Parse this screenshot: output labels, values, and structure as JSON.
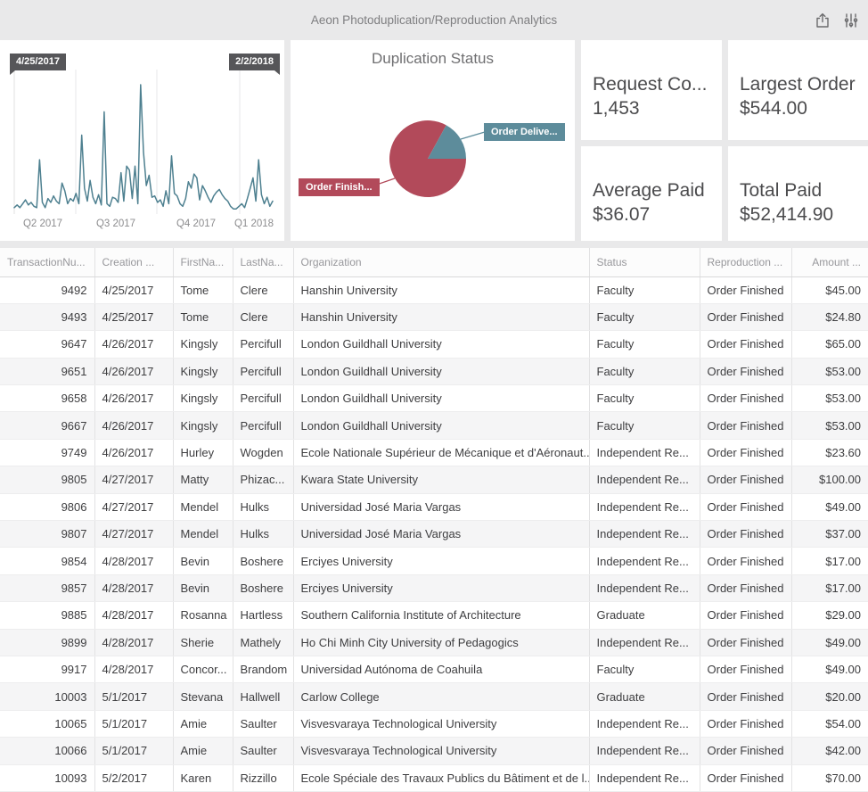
{
  "header": {
    "title": "Aeon Photoduplication/Reproduction Analytics",
    "icons": [
      "share-icon",
      "filter-sliders-icon"
    ]
  },
  "colors": {
    "line": "#4e8090",
    "pie_finished": "#b24a5a",
    "pie_delivered": "#5d8c9b",
    "badge": "#565659"
  },
  "chart_data": [
    {
      "type": "line",
      "title": "",
      "range_start_label": "4/25/2017",
      "range_end_label": "2/2/2018",
      "x_tick_labels": [
        "Q2 2017",
        "Q3 2017",
        "Q4 2017",
        "Q1 2018"
      ],
      "ylim": [
        0,
        100
      ],
      "color": "#4e8090",
      "values": [
        5,
        7,
        5,
        8,
        11,
        7,
        9,
        6,
        5,
        42,
        9,
        5,
        12,
        9,
        14,
        10,
        8,
        24,
        18,
        8,
        12,
        10,
        16,
        8,
        61,
        20,
        10,
        26,
        13,
        8,
        15,
        7,
        79,
        8,
        6,
        13,
        12,
        9,
        32,
        10,
        37,
        34,
        12,
        37,
        8,
        100,
        48,
        22,
        30,
        13,
        14,
        9,
        11,
        6,
        18,
        8,
        45,
        16,
        14,
        8,
        6,
        12,
        25,
        20,
        31,
        28,
        11,
        22,
        18,
        13,
        9,
        14,
        17,
        19,
        15,
        12,
        10,
        6,
        4,
        4,
        6,
        8,
        5,
        12,
        20,
        28,
        10,
        42,
        15,
        8,
        13,
        6,
        10
      ]
    },
    {
      "type": "pie",
      "title": "Duplication Status",
      "start_angle_deg": 90,
      "slices": [
        {
          "label": "Order Finish...",
          "value": 83,
          "color": "#b24a5a"
        },
        {
          "label": "Order Delive...",
          "value": 17,
          "color": "#5d8c9b"
        }
      ],
      "legend_position": "callout-badges"
    }
  ],
  "kpis": [
    {
      "label": "Request Co...",
      "value": "1,453"
    },
    {
      "label": "Largest Order",
      "value": "$544.00"
    },
    {
      "label": "Average Paid",
      "value": "$36.07"
    },
    {
      "label": "Total Paid",
      "value": "$52,414.90"
    }
  ],
  "table": {
    "columns": [
      "TransactionNu...",
      "Creation ...",
      "FirstNa...",
      "LastNa...",
      "Organization",
      "Status",
      "Reproduction ...",
      "Amount ..."
    ],
    "rows": [
      [
        "9492",
        "4/25/2017",
        "Tome",
        "Clere",
        "Hanshin University",
        "Faculty",
        "Order Finished",
        "$45.00"
      ],
      [
        "9493",
        "4/25/2017",
        "Tome",
        "Clere",
        "Hanshin University",
        "Faculty",
        "Order Finished",
        "$24.80"
      ],
      [
        "9647",
        "4/26/2017",
        "Kingsly",
        "Percifull",
        "London Guildhall University",
        "Faculty",
        "Order Finished",
        "$65.00"
      ],
      [
        "9651",
        "4/26/2017",
        "Kingsly",
        "Percifull",
        "London Guildhall University",
        "Faculty",
        "Order Finished",
        "$53.00"
      ],
      [
        "9658",
        "4/26/2017",
        "Kingsly",
        "Percifull",
        "London Guildhall University",
        "Faculty",
        "Order Finished",
        "$53.00"
      ],
      [
        "9667",
        "4/26/2017",
        "Kingsly",
        "Percifull",
        "London Guildhall University",
        "Faculty",
        "Order Finished",
        "$53.00"
      ],
      [
        "9749",
        "4/26/2017",
        "Hurley",
        "Wogden",
        "Ecole Nationale Supérieur de Mécanique et d'Aéronaut...",
        "Independent Re...",
        "Order Finished",
        "$23.60"
      ],
      [
        "9805",
        "4/27/2017",
        "Matty",
        "Phizac...",
        "Kwara State University",
        "Independent Re...",
        "Order Finished",
        "$100.00"
      ],
      [
        "9806",
        "4/27/2017",
        "Mendel",
        "Hulks",
        "Universidad José Maria Vargas",
        "Independent Re...",
        "Order Finished",
        "$49.00"
      ],
      [
        "9807",
        "4/27/2017",
        "Mendel",
        "Hulks",
        "Universidad José Maria Vargas",
        "Independent Re...",
        "Order Finished",
        "$37.00"
      ],
      [
        "9854",
        "4/28/2017",
        "Bevin",
        "Boshere",
        "Erciyes University",
        "Independent Re...",
        "Order Finished",
        "$17.00"
      ],
      [
        "9857",
        "4/28/2017",
        "Bevin",
        "Boshere",
        "Erciyes University",
        "Independent Re...",
        "Order Finished",
        "$17.00"
      ],
      [
        "9885",
        "4/28/2017",
        "Rosanna",
        "Hartless",
        "Southern California Institute of Architecture",
        "Graduate",
        "Order Finished",
        "$29.00"
      ],
      [
        "9899",
        "4/28/2017",
        "Sherie",
        "Mathely",
        "Ho Chi Minh City University of Pedagogics",
        "Independent Re...",
        "Order Finished",
        "$49.00"
      ],
      [
        "9917",
        "4/28/2017",
        "Concor...",
        "Brandom",
        "Universidad Autónoma de Coahuila",
        "Faculty",
        "Order Finished",
        "$49.00"
      ],
      [
        "10003",
        "5/1/2017",
        "Stevana",
        "Hallwell",
        "Carlow College",
        "Graduate",
        "Order Finished",
        "$20.00"
      ],
      [
        "10065",
        "5/1/2017",
        "Amie",
        "Saulter",
        "Visvesvaraya Technological University",
        "Independent Re...",
        "Order Finished",
        "$54.00"
      ],
      [
        "10066",
        "5/1/2017",
        "Amie",
        "Saulter",
        "Visvesvaraya Technological University",
        "Independent Re...",
        "Order Finished",
        "$42.00"
      ],
      [
        "10093",
        "5/2/2017",
        "Karen",
        "Rizzillo",
        "Ecole Spéciale des Travaux Publics du Bâtiment et de l...",
        "Independent Re...",
        "Order Finished",
        "$70.00"
      ]
    ]
  }
}
